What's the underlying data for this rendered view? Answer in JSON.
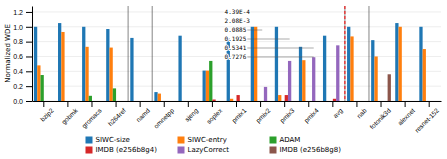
{
  "chart_data": {
    "type": "bar",
    "categories": [
      "bzip2",
      "gobmk",
      "gromacs",
      "h264ref",
      "namd",
      "omnetpp",
      "sjeng",
      "soplex",
      "pmix1",
      "pmix2",
      "pmix3",
      "pmix4",
      "avg",
      "nab",
      "fotonik3d",
      "alexnet",
      "resnet-152"
    ],
    "series": [
      {
        "name": "SIWC-size",
        "values": [
          1.0,
          1.05,
          1.0,
          0.97,
          0.85,
          0.12,
          0.88,
          0.41,
          0.84,
          1.0,
          1.0,
          0.73,
          0.88,
          1.0,
          0.82,
          1.05,
          1.0
        ]
      },
      {
        "name": "SIWC-entry",
        "values": [
          0.48,
          0.93,
          0.73,
          0.72,
          0.0,
          0.1,
          0.0,
          0.41,
          0.03,
          1.0,
          0.08,
          0.55,
          0.0,
          0.87,
          0.6,
          1.0,
          0.7
        ]
      },
      {
        "name": "ADAM",
        "values": [
          0.35,
          0.0,
          0.07,
          0.17,
          0.0,
          0.0,
          0.0,
          0.54,
          0.0,
          0.0,
          0.0,
          0.0,
          0.0,
          0.0,
          0.0,
          0.0,
          0.0
        ]
      },
      {
        "name": "IMDB (e256b8g4)",
        "values": [
          0.0,
          0.0,
          0.0,
          0.0,
          0.0,
          0.0,
          0.0,
          0.02,
          0.08,
          0.0,
          0.08,
          0.0,
          0.03,
          0.0,
          0.0,
          0.0,
          0.0
        ]
      },
      {
        "name": "LazyCorrect",
        "values": [
          0.0,
          0.0,
          0.0,
          0.0,
          0.0,
          0.0,
          0.0,
          0.0,
          0.0,
          0.19,
          0.54,
          0.59,
          0.75,
          0.0,
          0.0,
          0.0,
          0.0
        ]
      },
      {
        "name": "IMDB (e256b8g8)",
        "values": [
          0.0,
          0.0,
          0.0,
          0.0,
          0.0,
          0.0,
          0.0,
          0.0,
          0.0,
          0.0,
          0.0,
          0.0,
          0.0,
          0.0,
          0.36,
          0.0,
          0.0
        ]
      }
    ],
    "y_label": "Normalized WDE",
    "annotations": [
      "4.39E-4",
      "2.08E-3",
      "0.0885",
      "0.1925",
      "0.5341",
      "0.7276"
    ],
    "ylim": [
      0.0,
      1.28
    ],
    "yticks": [
      {
        "value": 0.0,
        "label": "0.0"
      },
      0.2,
      0.4,
      0.6,
      0.8,
      {
        "value": 1.0,
        "label": "1.0"
      },
      1.2
    ],
    "grid": true
  }
}
